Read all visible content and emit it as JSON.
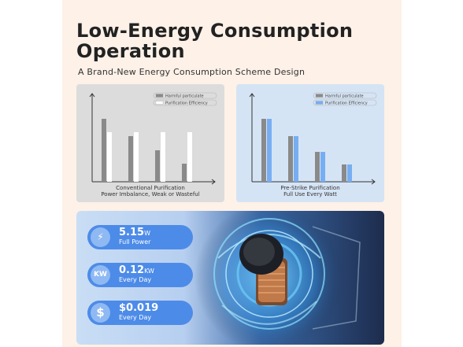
{
  "title_line1": "Low-Energy Consumption",
  "title_line2": "Operation",
  "subtitle": "A Brand-New Energy Consumption Scheme Design",
  "left_chart": {
    "legend": [
      "Harmful particulate",
      "Purification Efficiency"
    ],
    "caption_line1": "Conventional Purification",
    "caption_line2": "Power Imbalance, Weak or Wasteful",
    "series": [
      {
        "name": "Harmful particulate",
        "color": "#8a8a8a",
        "values": [
          80,
          58,
          40,
          23
        ]
      },
      {
        "name": "Purification Efficiency",
        "color": "#ffffff",
        "values": [
          63,
          63,
          63,
          63
        ]
      }
    ]
  },
  "right_chart": {
    "legend": [
      "Harmful particulate",
      "Purification Efficiency"
    ],
    "caption_line1": "Pre-Strike Purification",
    "caption_line2": "Full Use Every Watt",
    "series": [
      {
        "name": "Harmful particulate",
        "color": "#8a8a8a",
        "values": [
          80,
          58,
          38,
          22
        ]
      },
      {
        "name": "Purification Efficiency",
        "color": "#77aef2",
        "values": [
          80,
          58,
          38,
          22
        ]
      }
    ]
  },
  "stats": [
    {
      "icon": "lightning-icon",
      "icon_glyph": "⚡",
      "value": "5.15",
      "unit": "W",
      "label": "Full Power"
    },
    {
      "icon": "kw-icon",
      "icon_glyph": "KW",
      "value": "0.12",
      "unit": "KW",
      "label": "Every Day"
    },
    {
      "icon": "dollar-icon",
      "icon_glyph": "$",
      "value": "$0.019",
      "unit": "",
      "label": "Every Day"
    }
  ]
}
